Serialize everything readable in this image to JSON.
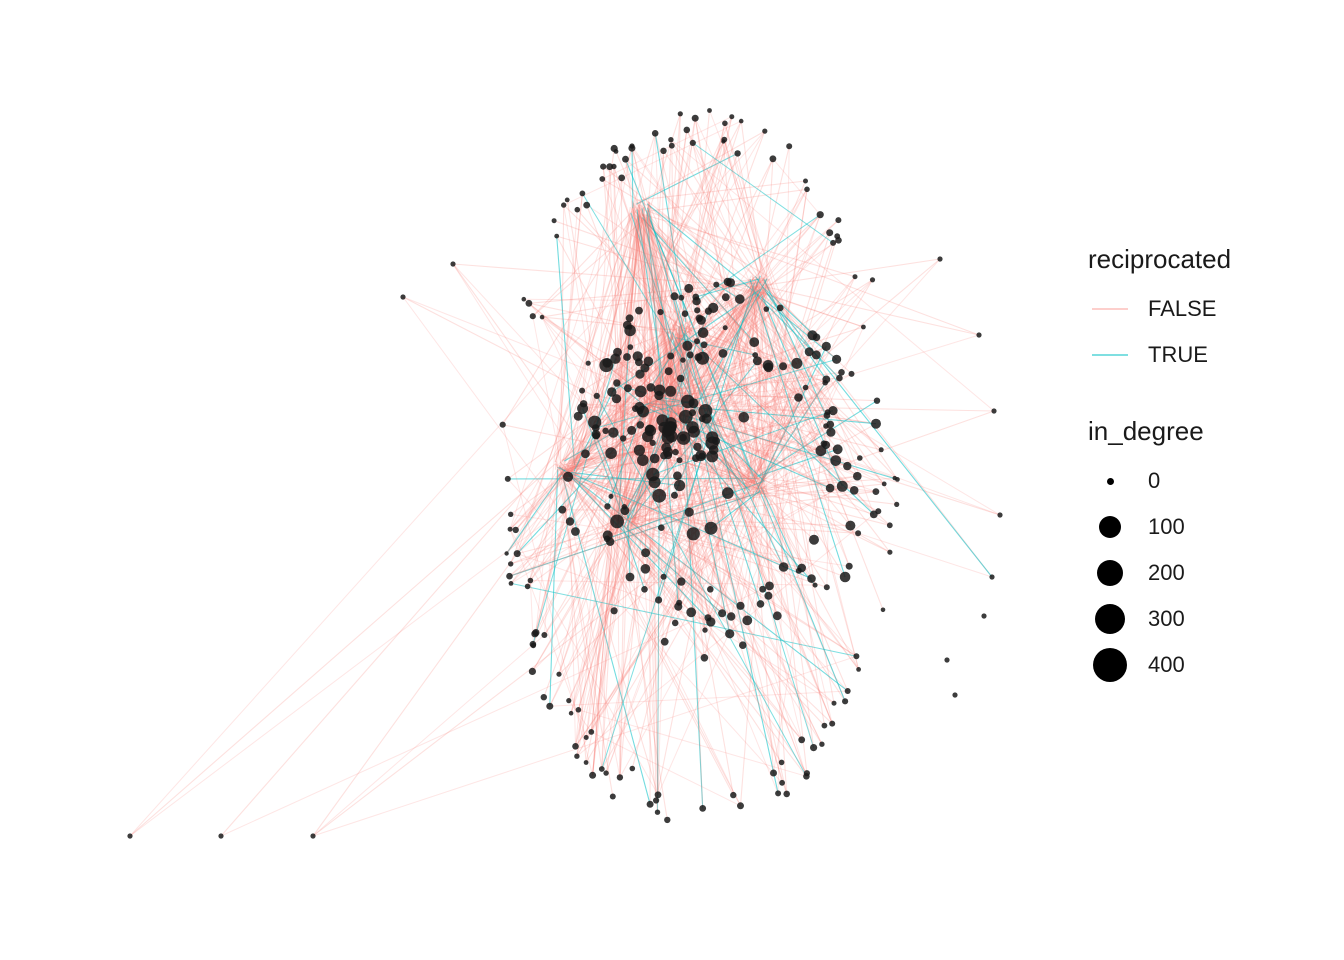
{
  "legend": {
    "edge_title": "reciprocated",
    "edge_items": [
      {
        "label": "FALSE",
        "color": "#f8766d"
      },
      {
        "label": "TRUE",
        "color": "#00bfc4"
      }
    ],
    "size_title": "in_degree",
    "size_items": [
      {
        "label": "0",
        "value": 0
      },
      {
        "label": "100",
        "value": 100
      },
      {
        "label": "200",
        "value": 200
      },
      {
        "label": "300",
        "value": 300
      },
      {
        "label": "400",
        "value": 400
      }
    ]
  },
  "colors": {
    "edge_false": "#f8766d",
    "edge_true": "#00bfc4",
    "node": "#1a1a1a"
  }
}
